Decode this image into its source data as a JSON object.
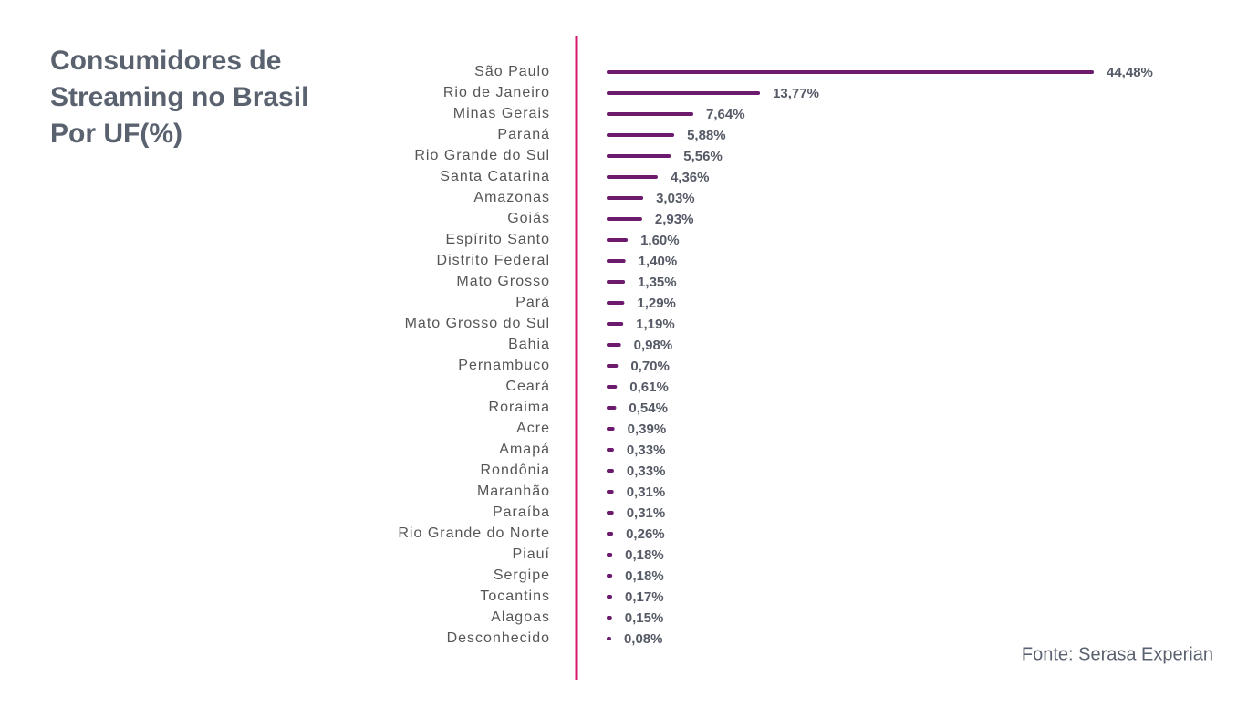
{
  "chart_data": {
    "type": "hbar",
    "title": "Consumidores de Streaming no Brasil Por UF(%)",
    "source": "Fonte: Serasa Experian",
    "color": "#6b1a6e",
    "categories": [
      "São Paulo",
      "Rio de Janeiro",
      "Minas Gerais",
      "Paraná",
      "Rio Grande do Sul",
      "Santa Catarina",
      "Amazonas",
      "Goiás",
      "Espírito Santo",
      "Distrito Federal",
      "Mato Grosso",
      "Pará",
      "Mato Grosso do Sul",
      "Bahia",
      "Pernambuco",
      "Ceará",
      "Roraima",
      "Acre",
      "Amapá",
      "Rondônia",
      "Maranhão",
      "Paraíba",
      "Rio Grande do Norte",
      "Piauí",
      "Sergipe",
      "Tocantins",
      "Alagoas",
      "Desconhecido"
    ],
    "values": [
      44.48,
      13.77,
      7.64,
      5.88,
      5.56,
      4.36,
      3.03,
      2.93,
      1.6,
      1.4,
      1.35,
      1.29,
      1.19,
      0.98,
      0.7,
      0.61,
      0.54,
      0.39,
      0.33,
      0.33,
      0.31,
      0.31,
      0.26,
      0.18,
      0.18,
      0.17,
      0.15,
      0.08
    ],
    "value_labels": [
      "44,48%",
      "13,77%",
      "7,64%",
      "5,88%",
      "5,56%",
      "4,36%",
      "3,03%",
      "2,93%",
      "1,60%",
      "1,40%",
      "1,35%",
      "1,29%",
      "1,19%",
      "0,98%",
      "0,70%",
      "0,61%",
      "0,54%",
      "0,39%",
      "0,33%",
      "0,33%",
      "0,31%",
      "0,31%",
      "0,26%",
      "0,18%",
      "0,18%",
      "0,17%",
      "0,15%",
      "0,08%"
    ]
  }
}
